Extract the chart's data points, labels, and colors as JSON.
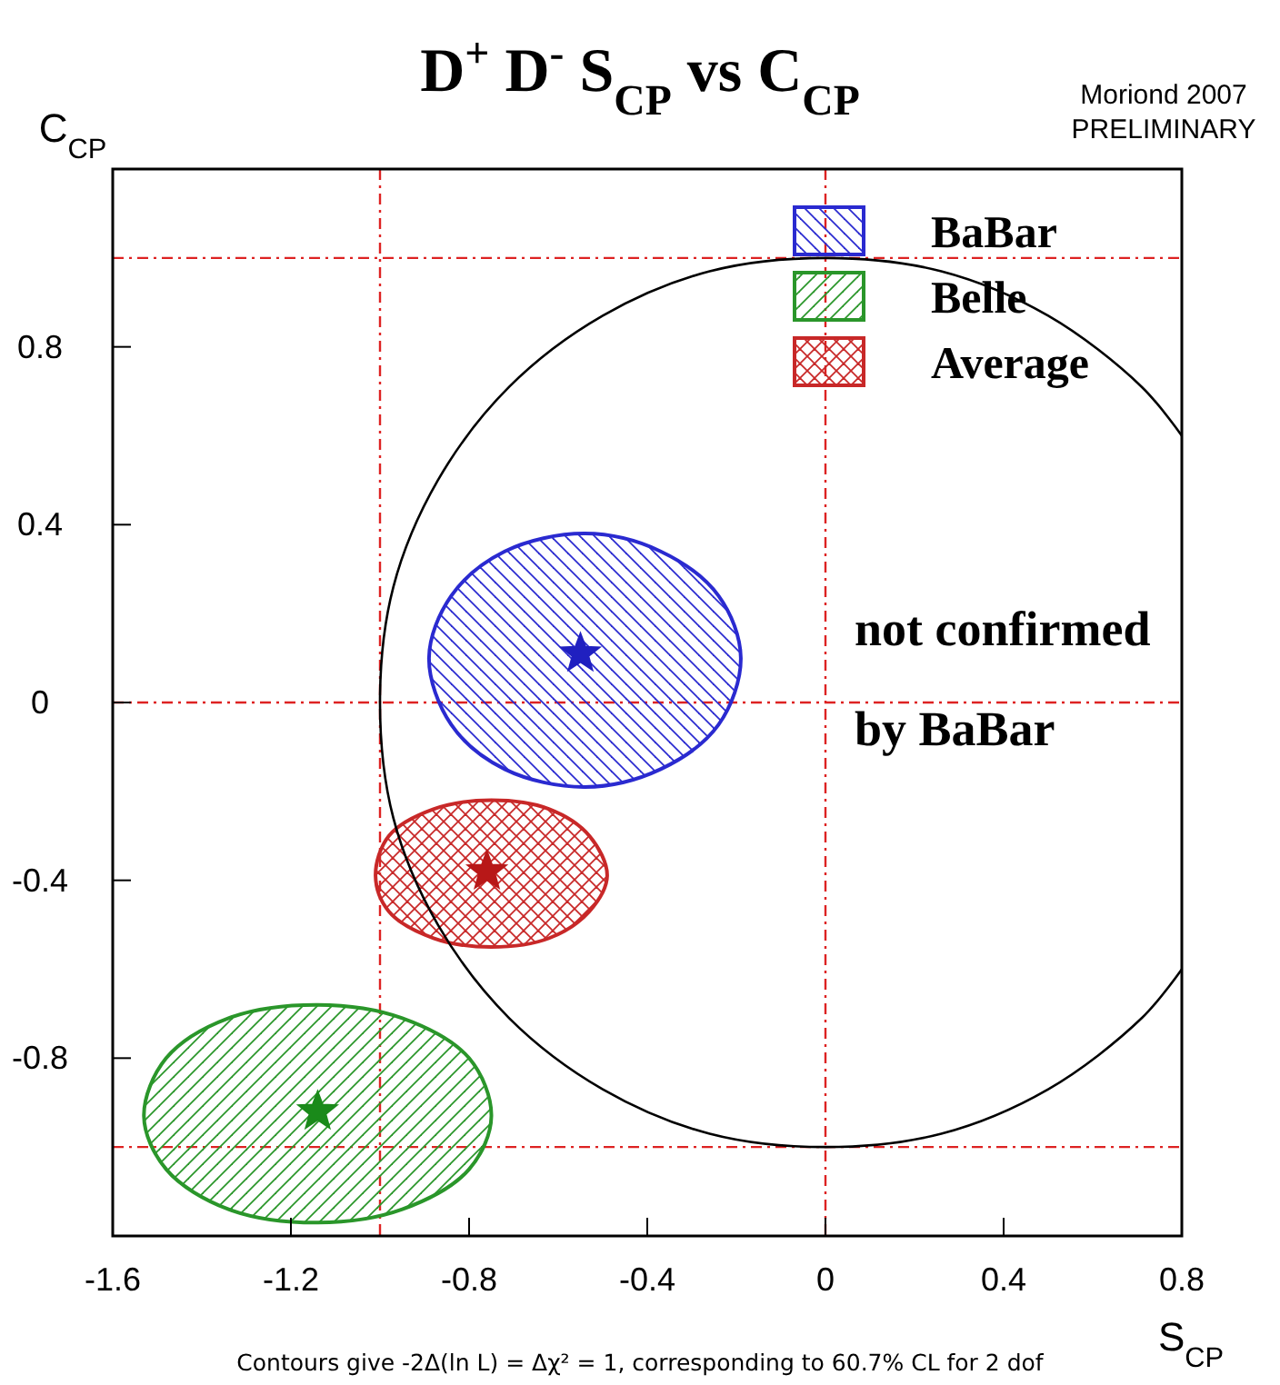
{
  "chart_data": {
    "type": "line",
    "title": "D$^{+}$ D$^{-}$ S$_{CP}$ vs C$_{CP}$",
    "xlabel": "S$_{CP}$",
    "ylabel": "C$_{CP}$",
    "xlim": [
      -1.6,
      0.8
    ],
    "ylim": [
      -1.2,
      1.2
    ],
    "xticks": [
      -1.6,
      -1.2,
      -0.8,
      -0.4,
      0,
      0.4,
      0.8
    ],
    "yticks": [
      -0.8,
      -0.4,
      0,
      0.4,
      0.8
    ],
    "grid": false,
    "legend": "top right",
    "marker": "none",
    "line_style": "solid",
    "series": [
      {
        "type": "area",
        "name": "BaBar",
        "color": "#2a2ad0",
        "x": [
          -0.19,
          -0.24,
          -0.37,
          -0.54,
          -0.72,
          -0.84,
          -0.89,
          -0.84,
          -0.72,
          -0.54,
          -0.37,
          -0.24,
          -0.19
        ],
        "values": [
          0.1,
          0.24,
          0.34,
          0.38,
          0.34,
          0.24,
          0.1,
          -0.05,
          -0.15,
          -0.19,
          -0.15,
          -0.05,
          0.1
        ]
      },
      {
        "type": "area",
        "name": "Belle",
        "color": "#2a962a",
        "x": [
          -0.75,
          -0.8,
          -0.95,
          -1.14,
          -1.34,
          -1.48,
          -1.53,
          -1.48,
          -1.34,
          -1.14,
          -0.95,
          -0.8,
          -0.75
        ],
        "values": [
          -0.93,
          -0.8,
          -0.71,
          -0.68,
          -0.71,
          -0.8,
          -0.93,
          -1.05,
          -1.14,
          -1.17,
          -1.14,
          -1.05,
          -0.93
        ]
      },
      {
        "type": "area",
        "name": "Average",
        "color": "#c82828",
        "x": [
          -0.49,
          -0.53,
          -0.62,
          -0.75,
          -0.88,
          -0.98,
          -1.01,
          -0.98,
          -0.88,
          -0.75,
          -0.62,
          -0.53,
          -0.49
        ],
        "values": [
          -0.39,
          -0.3,
          -0.24,
          -0.22,
          -0.24,
          -0.3,
          -0.39,
          -0.47,
          -0.53,
          -0.55,
          -0.53,
          -0.47,
          -0.39
        ]
      },
      {
        "type": "scatter",
        "marker": "star",
        "colors": [
          "#2020c0",
          "#1a8a1a",
          "#b81818"
        ],
        "x": [
          -0.55,
          -1.14,
          -0.76
        ],
        "values": [
          0.11,
          -0.92,
          -0.38
        ]
      },
      {
        "color": "#000000",
        "x": [
          0.8,
          0.71,
          0.5,
          0.26,
          0,
          -0.26,
          -0.5,
          -0.71,
          -0.87,
          -0.97,
          -1,
          -0.97,
          -0.87,
          -0.71,
          -0.5,
          -0.26,
          0,
          0.26,
          0.5,
          0.71,
          0.8
        ],
        "values": [
          0.6,
          0.71,
          0.87,
          0.97,
          1,
          0.97,
          0.87,
          0.71,
          0.5,
          0.26,
          0,
          -0.26,
          -0.5,
          -0.71,
          -0.87,
          -0.97,
          -1,
          -0.97,
          -0.87,
          -0.71,
          -0.6
        ]
      }
    ],
    "ref_lines": [
      {
        "axis": "x",
        "value": -1,
        "color": "#dd2222",
        "line_style": "dashdot"
      },
      {
        "axis": "x",
        "value": 0,
        "color": "#dd2222",
        "line_style": "dashdot"
      },
      {
        "axis": "y",
        "value": 1,
        "color": "#dd2222",
        "line_style": "dashdot"
      },
      {
        "axis": "y",
        "value": 0,
        "color": "#dd2222",
        "line_style": "dashdot"
      },
      {
        "axis": "y",
        "value": -1,
        "color": "#dd2222",
        "line_style": "dashdot"
      }
    ],
    "annotations": [
      "Moriond 2007",
      "PRELIMINARY",
      "Contours give -2Δ(ln L) = Δχ² = 1, corresponding to 60.7% CL for 2 dof",
      "not confirmed by BaBar"
    ]
  }
}
